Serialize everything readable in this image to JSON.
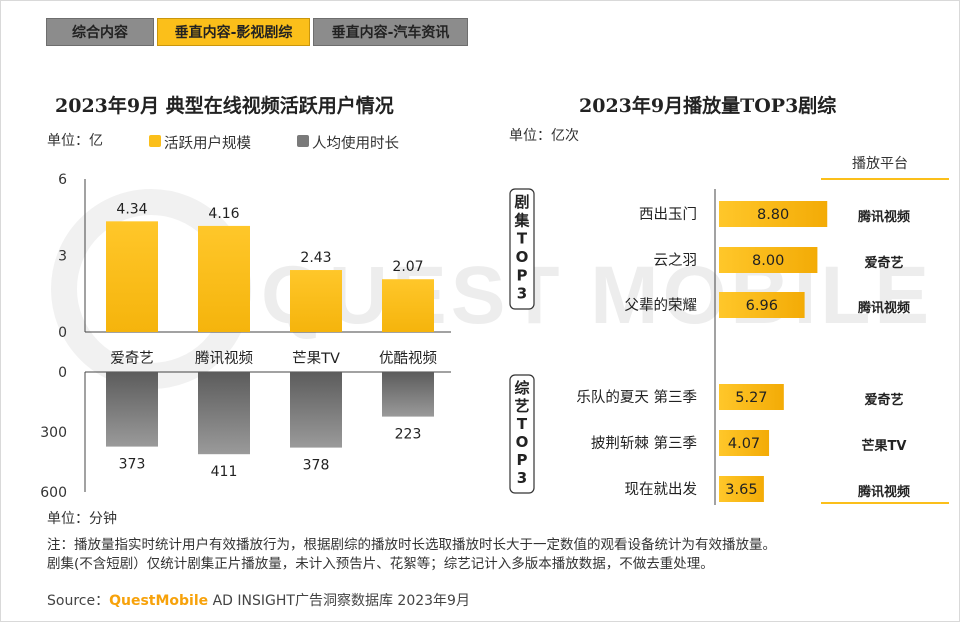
{
  "tabs": [
    {
      "label": "综合内容",
      "active": false
    },
    {
      "label": "垂直内容-影视剧综",
      "active": true
    },
    {
      "label": "垂直内容-汽车资讯",
      "active": false
    }
  ],
  "watermark": {
    "text": "QUEST MOBILE"
  },
  "colors": {
    "gold": "#fbbf1a",
    "gray": "#7a7a7a",
    "accent": "#f7a20b"
  },
  "left_chart": {
    "title": "2023年9月 典型在线视频活跃用户情况",
    "unit_top": "单位：亿",
    "unit_bottom": "单位：分钟",
    "legend": [
      {
        "label": "活跃用户规模",
        "color": "#fbbf1a"
      },
      {
        "label": "人均使用时长",
        "color": "#7a7a7a"
      }
    ]
  },
  "right_chart": {
    "title": "2023年9月播放量TOP3剧综",
    "unit": "单位：亿次",
    "platform_header": "播放平台",
    "group_labels": [
      "剧集TOP3",
      "综艺TOP3"
    ]
  },
  "chart_data": [
    {
      "type": "bar",
      "title": "2023年9月 典型在线视频活跃用户情况",
      "categories": [
        "爱奇艺",
        "腾讯视频",
        "芒果TV",
        "优酷视频"
      ],
      "series": [
        {
          "name": "活跃用户规模",
          "unit": "亿",
          "values": [
            4.34,
            4.16,
            2.43,
            2.07
          ],
          "ylim": [
            0,
            6
          ],
          "ticks": [
            0,
            3,
            6
          ]
        },
        {
          "name": "人均使用时长",
          "unit": "分钟",
          "values": [
            373,
            411,
            378,
            223
          ],
          "ylim": [
            0,
            600
          ],
          "ticks": [
            0,
            300,
            600
          ],
          "inverted": true
        }
      ]
    },
    {
      "type": "bar",
      "orientation": "horizontal",
      "title": "2023年9月播放量TOP3剧综",
      "unit": "亿次",
      "groups": [
        {
          "name": "剧集TOP3",
          "items": [
            {
              "label": "西出玉门",
              "value": 8.8,
              "display": "8.80",
              "platform": "腾讯视频"
            },
            {
              "label": "云之羽",
              "value": 8.0,
              "display": "8.00",
              "platform": "爱奇艺"
            },
            {
              "label": "父辈的荣耀",
              "value": 6.96,
              "display": "6.96",
              "platform": "腾讯视频"
            }
          ]
        },
        {
          "name": "综艺TOP3",
          "items": [
            {
              "label": "乐队的夏天 第三季",
              "value": 5.27,
              "display": "5.27",
              "platform": "爱奇艺"
            },
            {
              "label": "披荆斩棘 第三季",
              "value": 4.07,
              "display": "4.07",
              "platform": "芒果TV"
            },
            {
              "label": "现在就出发",
              "value": 3.65,
              "display": "3.65",
              "platform": "腾讯视频"
            }
          ]
        }
      ]
    }
  ],
  "notes": [
    "注：播放量指实时统计用户有效播放行为，根据剧综的播放时长选取播放时长大于一定数值的观看设备统计为有效播放量。",
    "剧集(不含短剧）仅统计剧集正片播放量，未计入预告片、花絮等；综艺记计入多版本播放数据，不做去重处理。"
  ],
  "source": {
    "prefix": "Source：",
    "brand": "QuestMobile",
    "rest": " AD INSIGHT广告洞察数据库 2023年9月"
  }
}
